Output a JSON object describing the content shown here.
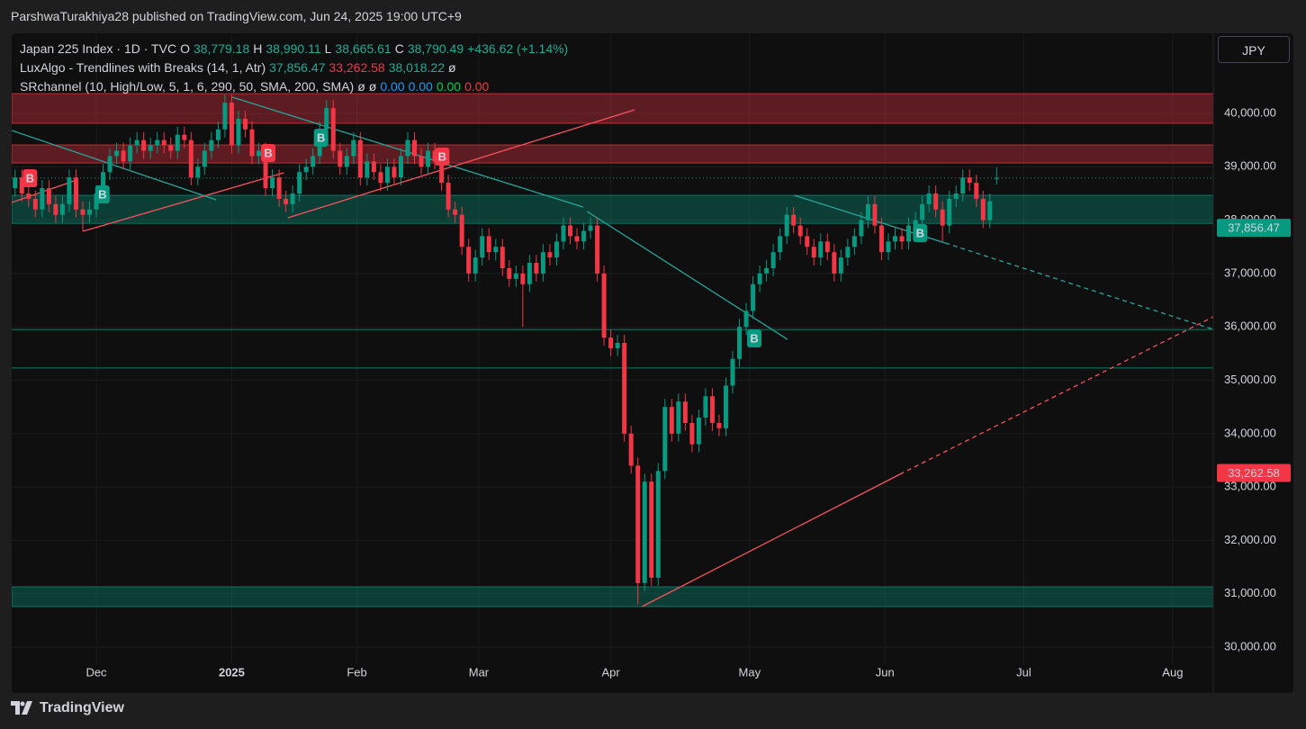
{
  "header": {
    "attribution": "ParshwaTurakhiya28 published on TradingView.com, Jun 24, 2025 19:00 UTC+9"
  },
  "legend": [
    [
      {
        "text": "Japan 225 Index · 1D · TVC",
        "color": "#d1d4dc"
      },
      {
        "text": "O",
        "color": "#d1d4dc"
      },
      {
        "text": "38,779.18",
        "color": "#22ab94"
      },
      {
        "text": "H",
        "color": "#d1d4dc"
      },
      {
        "text": "38,990.11",
        "color": "#22ab94"
      },
      {
        "text": "L",
        "color": "#d1d4dc"
      },
      {
        "text": "38,665.61",
        "color": "#22ab94"
      },
      {
        "text": "C",
        "color": "#d1d4dc"
      },
      {
        "text": "38,790.49",
        "color": "#22ab94"
      },
      {
        "text": "+436.62 (+1.14%)",
        "color": "#22ab94"
      }
    ],
    [
      {
        "text": "LuxAlgo - Trendlines with Breaks (14, 1, Atr)",
        "color": "#d1d4dc"
      },
      {
        "text": "37,856.47",
        "color": "#22ab94"
      },
      {
        "text": "33,262.58",
        "color": "#f23645"
      },
      {
        "text": "38,018.22",
        "color": "#22ab94"
      },
      {
        "text": "ø",
        "color": "#d1d4dc"
      }
    ],
    [
      {
        "text": "SRchannel (10, High/Low, 5, 1, 6, 290, 50, SMA, 200, SMA)",
        "color": "#d1d4dc"
      },
      {
        "text": "ø",
        "color": "#d1d4dc"
      },
      {
        "text": "ø",
        "color": "#d1d4dc"
      },
      {
        "text": "0.00",
        "color": "#2196f3"
      },
      {
        "text": "0.00",
        "color": "#2196f3"
      },
      {
        "text": "0.00",
        "color": "#00c853"
      },
      {
        "text": "0.00",
        "color": "#f23645"
      }
    ]
  ],
  "currency": "JPY",
  "footer": "TradingView",
  "chart_data": {
    "type": "candlestick",
    "up_color": "#089981",
    "down_color": "#f23645",
    "xlim": [
      -0.5,
      177
    ],
    "ylim": [
      29680,
      41484
    ],
    "grid": true,
    "xticks": [
      {
        "value": 12,
        "label": "Dec"
      },
      {
        "value": 32,
        "label": "2025",
        "bold": true
      },
      {
        "value": 50.5,
        "label": "Feb"
      },
      {
        "value": 68.5,
        "label": "Mar"
      },
      {
        "value": 88,
        "label": "Apr"
      },
      {
        "value": 108.5,
        "label": "May"
      },
      {
        "value": 128.5,
        "label": "Jun"
      },
      {
        "value": 149,
        "label": "Jul"
      },
      {
        "value": 171,
        "label": "Aug"
      }
    ],
    "yticks": [
      {
        "value": 30000,
        "label": "30,000.00"
      },
      {
        "value": 31000,
        "label": "31,000.00"
      },
      {
        "value": 32000,
        "label": "32,000.00"
      },
      {
        "value": 33000,
        "label": "33,000.00"
      },
      {
        "value": 34000,
        "label": "34,000.00"
      },
      {
        "value": 35000,
        "label": "35,000.00"
      },
      {
        "value": 36000,
        "label": "36,000.00"
      },
      {
        "value": 37000,
        "label": "37,000.00"
      },
      {
        "value": 38000,
        "label": "38,000.00"
      },
      {
        "value": 39000,
        "label": "39,000.00"
      },
      {
        "value": 40000,
        "label": "40,000.00"
      }
    ],
    "open": [
      38600,
      38800,
      38500,
      38400,
      38200,
      38600,
      38300,
      38100,
      38300,
      38800,
      38200,
      38100,
      38200,
      38500,
      38900,
      39200,
      39300,
      39100,
      39400,
      39500,
      39300,
      39400,
      39500,
      39400,
      39300,
      39600,
      39500,
      38800,
      39000,
      39300,
      39500,
      39700,
      40200,
      39400,
      39900,
      39700,
      39200,
      39300,
      38600,
      38800,
      38400,
      38300,
      38500,
      38900,
      39000,
      39200,
      39700,
      40100,
      39300,
      39000,
      39200,
      39500,
      38800,
      39100,
      38900,
      38700,
      39000,
      38800,
      39200,
      39500,
      39200,
      39000,
      39300,
      39100,
      38700,
      38200,
      38100,
      37500,
      37000,
      37300,
      37700,
      37400,
      37500,
      37100,
      36900,
      37000,
      36800,
      37200,
      37000,
      37400,
      37300,
      37600,
      37900,
      37700,
      37600,
      37800,
      37900,
      37000,
      35800,
      35600,
      35700,
      34000,
      33400,
      31200,
      33100,
      31300,
      33300,
      34500,
      34000,
      34600,
      34200,
      33800,
      34300,
      34700,
      34200,
      34100,
      34900,
      35400,
      36000,
      36300,
      36800,
      37000,
      37100,
      37400,
      37700,
      38100,
      37900,
      37700,
      37500,
      37300,
      37600,
      37400,
      37000,
      37300,
      37500,
      37700,
      38000,
      38300,
      37900,
      37400,
      37600,
      37700,
      37600,
      37900,
      38000,
      38300,
      38500,
      38200,
      37900,
      38400,
      38500,
      38800,
      38700,
      38400,
      38000,
      38779.18
    ],
    "high": [
      38950,
      38950,
      38650,
      38550,
      38750,
      38750,
      38450,
      38450,
      38950,
      38950,
      38350,
      38350,
      38650,
      39050,
      39350,
      39450,
      39450,
      39550,
      39650,
      39650,
      39550,
      39650,
      39650,
      39550,
      39750,
      39750,
      39650,
      39150,
      39450,
      39650,
      39850,
      40350,
      40350,
      40050,
      40050,
      39850,
      39450,
      39450,
      38950,
      38950,
      38550,
      38650,
      39050,
      39150,
      39350,
      39850,
      40250,
      40250,
      39450,
      39350,
      39650,
      39650,
      39250,
      39250,
      39050,
      39150,
      39150,
      39350,
      39650,
      39650,
      39350,
      39450,
      39450,
      39250,
      38850,
      38350,
      38250,
      37650,
      37450,
      37850,
      37850,
      37650,
      37650,
      37250,
      37150,
      37150,
      37350,
      37350,
      37550,
      37550,
      37750,
      38050,
      38050,
      37850,
      37950,
      38050,
      38050,
      37150,
      35950,
      35850,
      35850,
      34150,
      33550,
      33250,
      33250,
      33450,
      34650,
      34650,
      34750,
      34750,
      34350,
      34450,
      34850,
      34850,
      34350,
      35050,
      35550,
      36150,
      36450,
      36950,
      37150,
      37250,
      37550,
      37850,
      38250,
      38250,
      38050,
      37850,
      37650,
      37750,
      37750,
      37550,
      37450,
      37650,
      37850,
      38150,
      38450,
      38450,
      38050,
      37750,
      37850,
      37850,
      38050,
      38150,
      38450,
      38650,
      38650,
      38350,
      38550,
      38650,
      38950,
      38950,
      38850,
      38550,
      38500,
      38990.11
    ],
    "low": [
      38450,
      38350,
      38250,
      38050,
      38050,
      38150,
      37950,
      37950,
      38150,
      38050,
      37800,
      37950,
      38050,
      38350,
      38750,
      39050,
      38950,
      38950,
      39250,
      39150,
      39150,
      39250,
      39250,
      39150,
      39150,
      39350,
      38650,
      38650,
      38850,
      39150,
      39350,
      39550,
      39250,
      39250,
      39550,
      39050,
      39050,
      38450,
      38450,
      38250,
      38150,
      38150,
      38350,
      38750,
      38850,
      39050,
      39550,
      39150,
      38850,
      38850,
      39050,
      38650,
      38650,
      38750,
      38550,
      38550,
      38650,
      38650,
      39050,
      39050,
      38850,
      38850,
      38950,
      38550,
      38050,
      37950,
      37350,
      36850,
      36850,
      37150,
      37250,
      37250,
      36950,
      36750,
      36750,
      36000,
      36650,
      36850,
      36850,
      37150,
      37150,
      37450,
      37550,
      37450,
      37450,
      37650,
      36850,
      35650,
      35450,
      35450,
      33850,
      33250,
      30800,
      31050,
      31150,
      31150,
      33150,
      33850,
      33850,
      34050,
      33650,
      33650,
      34150,
      34050,
      33950,
      33950,
      34750,
      35250,
      35850,
      36150,
      36650,
      36850,
      36950,
      37250,
      37550,
      37750,
      37550,
      37350,
      37150,
      37150,
      37250,
      36850,
      36850,
      37150,
      37350,
      37550,
      37850,
      37750,
      37250,
      37250,
      37450,
      37450,
      37450,
      37750,
      37850,
      38150,
      38050,
      37600,
      37750,
      38250,
      38350,
      38550,
      38250,
      37850,
      37850,
      38665.61
    ],
    "close": [
      38800,
      38500,
      38400,
      38200,
      38600,
      38300,
      38100,
      38300,
      38800,
      38200,
      38100,
      38200,
      38500,
      38900,
      39200,
      39300,
      39100,
      39400,
      39500,
      39300,
      39400,
      39500,
      39400,
      39300,
      39600,
      39500,
      38800,
      39000,
      39300,
      39500,
      39700,
      40200,
      39400,
      39900,
      39700,
      39200,
      39300,
      38600,
      38800,
      38400,
      38300,
      38500,
      38900,
      39000,
      39200,
      39700,
      40100,
      39300,
      39000,
      39200,
      39500,
      38800,
      39100,
      38900,
      38700,
      39000,
      38800,
      39200,
      39500,
      39200,
      39000,
      39300,
      39100,
      38700,
      38200,
      38100,
      37500,
      37000,
      37300,
      37700,
      37400,
      37500,
      37100,
      36900,
      37000,
      36800,
      37200,
      37000,
      37400,
      37300,
      37600,
      37900,
      37700,
      37600,
      37800,
      37900,
      37000,
      35800,
      35600,
      35700,
      34000,
      33400,
      31200,
      33100,
      31300,
      33300,
      34500,
      34000,
      34600,
      34200,
      33800,
      34300,
      34700,
      34200,
      34100,
      34900,
      35400,
      36000,
      36300,
      36800,
      37000,
      37100,
      37400,
      37700,
      38100,
      37900,
      37700,
      37500,
      37300,
      37600,
      37400,
      37000,
      37300,
      37500,
      37700,
      38000,
      38300,
      37900,
      37400,
      37600,
      37700,
      37600,
      37900,
      38000,
      38300,
      38500,
      38200,
      37900,
      38400,
      38500,
      38800,
      38700,
      38400,
      38000,
      38354,
      38790.49
    ],
    "zones": [
      {
        "low": 39815,
        "high": 40370,
        "color": "#f23645"
      },
      {
        "low": 39070,
        "high": 39410,
        "color": "#f23645"
      },
      {
        "low": 37940,
        "high": 38465,
        "color": "#089981"
      },
      {
        "low": 30760,
        "high": 31130,
        "color": "#089981"
      }
    ],
    "levels": [
      {
        "value": 35950,
        "color": "#089981"
      },
      {
        "value": 35230,
        "color": "#089981"
      }
    ],
    "trendlines": [
      {
        "color": "#26a69a",
        "dashed": false,
        "points": [
          [
            -0.5,
            39680
          ],
          [
            29.7,
            38381
          ]
        ]
      },
      {
        "color": "#26a69a",
        "dashed": false,
        "points": [
          [
            32.1,
            40304
          ],
          [
            83.9,
            38246
          ]
        ]
      },
      {
        "color": "#26a69a",
        "dashed": false,
        "points": [
          [
            84.5,
            38162
          ],
          [
            114.1,
            35767
          ]
        ]
      },
      {
        "color": "#26a69a",
        "dashed": false,
        "points": [
          [
            115.1,
            38465
          ],
          [
            137.4,
            37572
          ]
        ]
      },
      {
        "color": "#26a69a",
        "dashed": true,
        "points": [
          [
            137.4,
            37572
          ],
          [
            177,
            35953
          ]
        ]
      },
      {
        "color": "#f7525f",
        "dashed": false,
        "points": [
          [
            -0.5,
            38330
          ],
          [
            9.1,
            38752
          ]
        ]
      },
      {
        "color": "#f7525f",
        "dashed": false,
        "points": [
          [
            10,
            37791
          ],
          [
            39.7,
            38887
          ]
        ]
      },
      {
        "color": "#f7525f",
        "dashed": false,
        "points": [
          [
            40.3,
            38044
          ],
          [
            91.5,
            40067
          ]
        ]
      },
      {
        "color": "#f7525f",
        "dashed": false,
        "points": [
          [
            92.6,
            30759
          ],
          [
            130.7,
            33238
          ]
        ]
      },
      {
        "color": "#f7525f",
        "dashed": true,
        "points": [
          [
            130.7,
            33238
          ],
          [
            177,
            36189
          ]
        ]
      }
    ],
    "markers": [
      {
        "x": 2.2,
        "y": 38786,
        "text": "B",
        "color": "#f23645"
      },
      {
        "x": 12.9,
        "y": 38482,
        "text": "B",
        "color": "#089981"
      },
      {
        "x": 37.4,
        "y": 39258,
        "text": "B",
        "color": "#f23645"
      },
      {
        "x": 45.2,
        "y": 39545,
        "text": "B",
        "color": "#089981"
      },
      {
        "x": 63.1,
        "y": 39191,
        "text": "B",
        "color": "#f23645"
      },
      {
        "x": 109.2,
        "y": 35784,
        "text": "B",
        "color": "#089981"
      },
      {
        "x": 133.7,
        "y": 37757,
        "text": "B",
        "color": "#089981"
      }
    ],
    "price_labels": [
      {
        "value": 37856.47,
        "label": "37,856.47",
        "color": "#089981"
      },
      {
        "value": 33262.58,
        "label": "33,262.58",
        "color": "#f23645"
      }
    ]
  }
}
